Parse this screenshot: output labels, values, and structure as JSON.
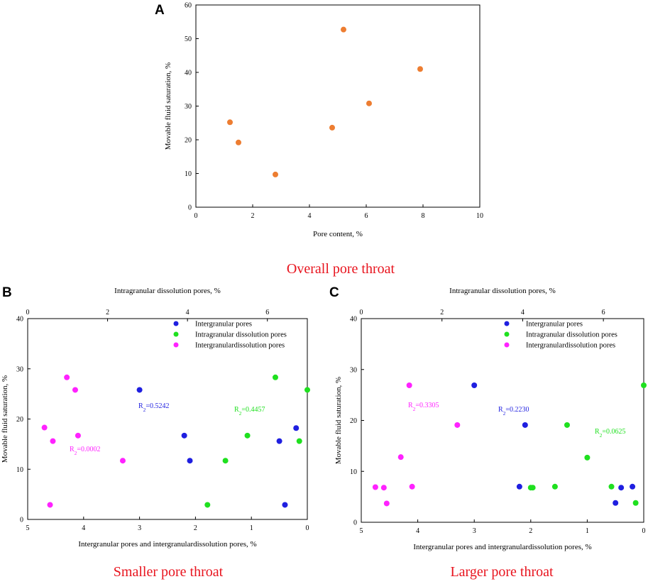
{
  "colors": {
    "orange": "#ED7D31",
    "blue": "#1F1FE0",
    "green": "#1FE01F",
    "magenta": "#FF22FF",
    "caption": "#E8141E"
  },
  "chart_data": [
    {
      "panel": "A",
      "type": "scatter",
      "title": "",
      "caption": "Overall pore throat",
      "xlabel": "Pore content, %",
      "ylabel": "Movable fluid saturation, %",
      "xlim": [
        0,
        10
      ],
      "ylim": [
        0,
        60
      ],
      "xticks": [
        "0",
        "2",
        "4",
        "6",
        "8",
        "10"
      ],
      "yticks": [
        "0",
        "10",
        "20",
        "30",
        "40",
        "50",
        "60"
      ],
      "series": [
        {
          "name": "Overall",
          "color": "orange",
          "x": [
            1.2,
            1.5,
            2.8,
            4.8,
            5.2,
            6.1,
            7.9
          ],
          "y": [
            25.2,
            19.2,
            9.7,
            23.6,
            52.7,
            30.8,
            41.0
          ]
        }
      ]
    },
    {
      "panel": "B",
      "type": "scatter",
      "caption": "Smaller pore throat",
      "xlabel": "Intergranular pores and intergranulardissolution pores, %",
      "x2label": "Intragranular dissolution pores, %",
      "ylabel": "Movable fluid saturation, %",
      "xlim": [
        5,
        0
      ],
      "x2lim": [
        0,
        7
      ],
      "ylim": [
        0,
        40
      ],
      "xticks": [
        "5",
        "4",
        "3",
        "2",
        "1",
        "0"
      ],
      "x2ticks": [
        "0",
        "2",
        "4",
        "6"
      ],
      "yticks": [
        "0",
        "10",
        "20",
        "30",
        "40"
      ],
      "legend": [
        "Intergranular pores",
        "Intragranular dissolution pores",
        "Intergranulardissolution pores"
      ],
      "series": [
        {
          "name": "Intergranular pores",
          "color": "blue",
          "axis": "bottom",
          "x": [
            3.0,
            2.2,
            2.1,
            0.5,
            0.4,
            0.2
          ],
          "y": [
            25.8,
            16.7,
            11.7,
            15.6,
            2.9,
            18.2
          ]
        },
        {
          "name": "Intragranular dissolution pores",
          "color": "green",
          "axis": "top",
          "x": [
            4.5,
            4.95,
            5.5,
            6.2,
            6.8,
            7.0
          ],
          "y": [
            2.9,
            11.7,
            16.7,
            28.3,
            15.6,
            25.8
          ]
        },
        {
          "name": "Intergranulardissolution pores",
          "color": "magenta",
          "axis": "bottom",
          "x": [
            4.7,
            4.55,
            4.6,
            4.3,
            4.15,
            4.1,
            3.3
          ],
          "y": [
            18.3,
            15.6,
            2.9,
            28.3,
            25.8,
            16.7,
            11.7
          ]
        }
      ],
      "annotations": [
        {
          "prefix": "R",
          "sub": "2",
          "suffix": "=0.5242",
          "color": "blue"
        },
        {
          "prefix": "R",
          "sub": "2",
          "suffix": "=0.4457",
          "color": "green"
        },
        {
          "prefix": "R",
          "sub": "2",
          "suffix": "=0.0002",
          "color": "magenta"
        }
      ]
    },
    {
      "panel": "C",
      "type": "scatter",
      "caption": "Larger pore throat",
      "xlabel": "Intergranular pores and intergranulardissolution pores, %",
      "x2label": "Intragranular dissolution pores, %",
      "ylabel": "Movable fluid saturation, %",
      "xlim": [
        5,
        0
      ],
      "x2lim": [
        0,
        7
      ],
      "ylim": [
        0,
        40
      ],
      "xticks": [
        "5",
        "4",
        "3",
        "2",
        "1",
        "0"
      ],
      "x2ticks": [
        "0",
        "2",
        "4",
        "6"
      ],
      "yticks": [
        "0",
        "10",
        "20",
        "30",
        "40"
      ],
      "legend": [
        "Intergranular pores",
        "Intragranular dissolution pores",
        "Intergranulardissolution pores"
      ],
      "series": [
        {
          "name": "Intergranular pores",
          "color": "blue",
          "axis": "bottom",
          "x": [
            3.0,
            2.2,
            2.1,
            0.5,
            0.4,
            0.2
          ],
          "y": [
            26.9,
            7.0,
            19.1,
            3.8,
            6.8,
            7.0
          ]
        },
        {
          "name": "Intragranular dissolution pores",
          "color": "green",
          "axis": "top",
          "x": [
            4.2,
            4.25,
            4.8,
            5.1,
            5.6,
            6.2,
            6.8,
            7.0
          ],
          "y": [
            6.8,
            6.8,
            7.0,
            19.1,
            12.7,
            7.0,
            3.8,
            26.9
          ]
        },
        {
          "name": "Intergranulardissolution pores",
          "color": "magenta",
          "axis": "bottom",
          "x": [
            4.75,
            4.6,
            4.55,
            4.3,
            4.15,
            4.1,
            3.3
          ],
          "y": [
            6.9,
            6.8,
            3.7,
            12.8,
            26.9,
            7.0,
            19.1
          ]
        }
      ],
      "annotations": [
        {
          "prefix": "R",
          "sub": "2",
          "suffix": "=0.3305",
          "color": "magenta"
        },
        {
          "prefix": "R",
          "sub": "2",
          "suffix": "=0.2230",
          "color": "blue"
        },
        {
          "prefix": "R",
          "sub": "2",
          "suffix": "=0.0625",
          "color": "green"
        }
      ]
    }
  ]
}
